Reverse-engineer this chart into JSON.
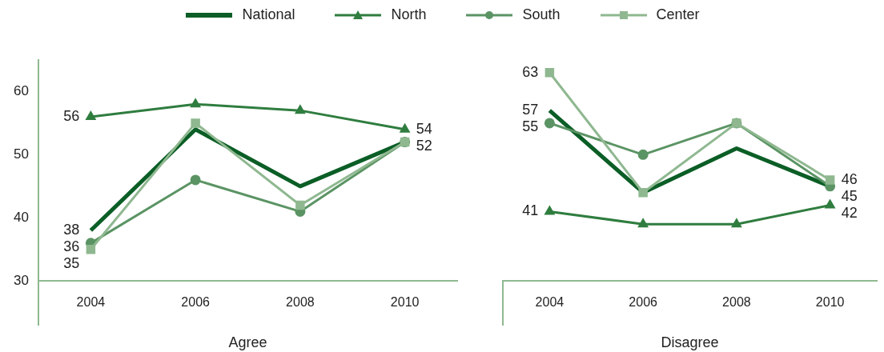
{
  "chart_data": [
    {
      "type": "line",
      "xlabel": "Agree",
      "categories": [
        "2004",
        "2006",
        "2008",
        "2010"
      ],
      "ylim": [
        30,
        65
      ],
      "yticks": [
        30,
        40,
        50,
        60
      ],
      "legend": "top",
      "tick_labels": true,
      "series": [
        {
          "name": "National",
          "color": "#0b5e26",
          "marker": "none",
          "values": [
            38,
            54,
            45,
            52
          ],
          "value_labels": [
            "38",
            null,
            null,
            "52"
          ]
        },
        {
          "name": "North",
          "color": "#2f7d3f",
          "marker": "triangle",
          "values": [
            56,
            58,
            57,
            54
          ],
          "value_labels": [
            "56",
            null,
            null,
            "54"
          ]
        },
        {
          "name": "South",
          "color": "#5b9464",
          "marker": "circle",
          "values": [
            36,
            46,
            41,
            52
          ],
          "value_labels": [
            "36",
            null,
            null,
            null
          ]
        },
        {
          "name": "Center",
          "color": "#8fb890",
          "marker": "square",
          "values": [
            35,
            55,
            42,
            52
          ],
          "value_labels": [
            "35",
            null,
            null,
            null
          ]
        }
      ]
    },
    {
      "type": "line",
      "xlabel": "Disagree",
      "categories": [
        "2004",
        "2006",
        "2008",
        "2010"
      ],
      "tick_labels": "x",
      "series": [
        {
          "color": "#0b5e26",
          "marker": "none",
          "values": [
            57,
            44,
            51,
            45
          ],
          "value_labels": [
            "57",
            null,
            null,
            "45"
          ]
        },
        {
          "color": "#2f7d3f",
          "marker": "triangle",
          "values": [
            41,
            39,
            39,
            42
          ],
          "value_labels": [
            "41",
            null,
            null,
            "42"
          ]
        },
        {
          "color": "#5b9464",
          "marker": "circle",
          "values": [
            55,
            50,
            55,
            45
          ],
          "value_labels": [
            "55",
            null,
            null,
            null
          ]
        },
        {
          "color": "#8fb890",
          "marker": "square",
          "values": [
            63,
            44,
            55,
            46
          ],
          "value_labels": [
            "63",
            null,
            null,
            "46"
          ]
        }
      ]
    }
  ]
}
